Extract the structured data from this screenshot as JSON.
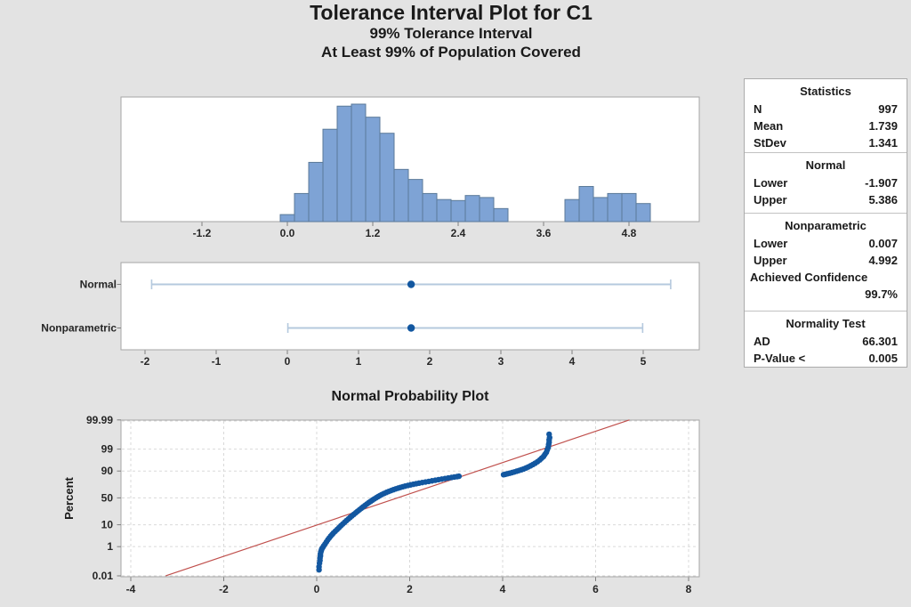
{
  "title": {
    "line1": "Tolerance Interval Plot for C1",
    "line2": "99% Tolerance Interval",
    "line3": "At Least 99% of Population Covered"
  },
  "stats_panel": {
    "sections": [
      {
        "title": "Statistics",
        "rows": [
          {
            "label": "N",
            "value": "997"
          },
          {
            "label": "Mean",
            "value": "1.739"
          },
          {
            "label": "StDev",
            "value": "1.341"
          }
        ]
      },
      {
        "title": "Normal",
        "rows": [
          {
            "label": "Lower",
            "value": "-1.907"
          },
          {
            "label": "Upper",
            "value": "5.386"
          }
        ]
      },
      {
        "title": "Nonparametric",
        "rows": [
          {
            "label": "Lower",
            "value": "0.007"
          },
          {
            "label": "Upper",
            "value": "4.992"
          }
        ],
        "extra_label": "Achieved Confidence",
        "extra_value": "99.7%"
      },
      {
        "title": "Normality Test",
        "rows": [
          {
            "label": "AD",
            "value": "66.301"
          },
          {
            "label": "P-Value <",
            "value": "0.005"
          }
        ]
      }
    ]
  },
  "colors": {
    "bar_fill": "#7EA3D5",
    "bar_stroke": "#5B7A99",
    "interval_line": "#B5C9DE",
    "symbol_blue": "#1257A0",
    "fit_line_red": "#C0504D",
    "panel_border": "#A6A6A6",
    "grid": "#D9D9D9",
    "tick": "#7F7F7F",
    "background": "#E3E3E3"
  },
  "chart_data": [
    {
      "type": "bar",
      "name": "histogram",
      "bin_width": 0.2,
      "bins": [
        [
          0.0,
          7
        ],
        [
          0.2,
          28
        ],
        [
          0.4,
          59
        ],
        [
          0.6,
          92
        ],
        [
          0.8,
          115
        ],
        [
          1.0,
          117
        ],
        [
          1.2,
          104
        ],
        [
          1.4,
          88
        ],
        [
          1.6,
          52
        ],
        [
          1.8,
          42
        ],
        [
          2.0,
          28
        ],
        [
          2.2,
          22
        ],
        [
          2.4,
          21
        ],
        [
          2.6,
          26
        ],
        [
          2.8,
          24
        ],
        [
          3.0,
          13
        ],
        [
          4.0,
          22
        ],
        [
          4.2,
          35
        ],
        [
          4.4,
          24
        ],
        [
          4.6,
          28
        ],
        [
          4.8,
          28
        ],
        [
          5.0,
          18
        ]
      ],
      "x_ticks": [
        -1.2,
        0.0,
        1.2,
        2.4,
        3.6,
        4.8
      ],
      "x_tick_labels": [
        "-1.2",
        "0.0",
        "1.2",
        "2.4",
        "3.6",
        "4.8"
      ],
      "xlim": [
        -2.34,
        5.79
      ],
      "max_count": 117,
      "grid": false
    },
    {
      "type": "interval",
      "name": "tolerance-intervals",
      "rows": [
        {
          "label": "Normal",
          "lower": -1.907,
          "upper": 5.386,
          "center": 1.739
        },
        {
          "label": "Nonparametric",
          "lower": 0.007,
          "upper": 4.992,
          "center": 1.739
        }
      ],
      "x_ticks": [
        -2,
        -1,
        0,
        1,
        2,
        3,
        4,
        5
      ],
      "x_tick_labels": [
        "-2",
        "-1",
        "0",
        "1",
        "2",
        "3",
        "4",
        "5"
      ],
      "xlim": [
        -2.34,
        5.79
      ],
      "grid": false
    },
    {
      "type": "scatter",
      "name": "normal-probability-plot",
      "title": "Normal Probability Plot",
      "ylabel": "Percent",
      "y_scale": "normal-probability",
      "y_ticks": [
        0.01,
        1,
        10,
        50,
        90,
        99,
        99.99
      ],
      "y_tick_labels": [
        "0.01",
        "1",
        "10",
        "50",
        "90",
        "99",
        "99.99"
      ],
      "x_ticks": [
        -4,
        -2,
        0,
        2,
        4,
        6,
        8
      ],
      "x_tick_labels": [
        "-4",
        "-2",
        "0",
        "2",
        "4",
        "6",
        "8"
      ],
      "xlim": [
        -4.2,
        8.2
      ],
      "grid": true,
      "fit_line": {
        "x1": -3.248,
        "p1": 0.01,
        "x2": 6.727,
        "p2": 99.99,
        "mean": 1.739,
        "stdev": 1.341
      },
      "points": [
        [
          0.05,
          0.03
        ],
        [
          0.05,
          0.05
        ],
        [
          0.06,
          0.09
        ],
        [
          0.07,
          0.14
        ],
        [
          0.07,
          0.2
        ],
        [
          0.08,
          0.28
        ],
        [
          0.08,
          0.38
        ],
        [
          0.09,
          0.5
        ],
        [
          0.1,
          0.62
        ],
        [
          0.11,
          0.75
        ],
        [
          0.13,
          0.9
        ],
        [
          0.15,
          1.1
        ],
        [
          0.18,
          1.4
        ],
        [
          0.21,
          1.8
        ],
        [
          0.24,
          2.3
        ],
        [
          0.27,
          2.8
        ],
        [
          0.3,
          3.4
        ],
        [
          0.33,
          4.0
        ],
        [
          0.36,
          4.7
        ],
        [
          0.4,
          5.6
        ],
        [
          0.44,
          6.6
        ],
        [
          0.48,
          7.8
        ],
        [
          0.52,
          9.2
        ],
        [
          0.56,
          10.6
        ],
        [
          0.6,
          12.2
        ],
        [
          0.64,
          13.9
        ],
        [
          0.68,
          15.7
        ],
        [
          0.72,
          17.6
        ],
        [
          0.76,
          19.6
        ],
        [
          0.8,
          21.7
        ],
        [
          0.84,
          23.9
        ],
        [
          0.88,
          26.2
        ],
        [
          0.92,
          28.6
        ],
        [
          0.96,
          31.0
        ],
        [
          1.0,
          33.5
        ],
        [
          1.04,
          36.0
        ],
        [
          1.08,
          38.5
        ],
        [
          1.12,
          41.0
        ],
        [
          1.16,
          43.4
        ],
        [
          1.2,
          45.8
        ],
        [
          1.24,
          48.1
        ],
        [
          1.28,
          50.3
        ],
        [
          1.32,
          52.4
        ],
        [
          1.36,
          54.4
        ],
        [
          1.4,
          56.3
        ],
        [
          1.45,
          58.4
        ],
        [
          1.5,
          60.3
        ],
        [
          1.55,
          62.1
        ],
        [
          1.6,
          63.7
        ],
        [
          1.65,
          65.2
        ],
        [
          1.7,
          66.6
        ],
        [
          1.75,
          67.9
        ],
        [
          1.8,
          69.1
        ],
        [
          1.85,
          70.2
        ],
        [
          1.9,
          71.2
        ],
        [
          1.96,
          72.3
        ],
        [
          2.02,
          73.3
        ],
        [
          2.08,
          74.2
        ],
        [
          2.14,
          75.1
        ],
        [
          2.2,
          75.9
        ],
        [
          2.27,
          76.8
        ],
        [
          2.34,
          77.6
        ],
        [
          2.41,
          78.4
        ],
        [
          2.48,
          79.2
        ],
        [
          2.55,
          80.0
        ],
        [
          2.62,
          80.8
        ],
        [
          2.69,
          81.5
        ],
        [
          2.76,
          82.2
        ],
        [
          2.83,
          82.9
        ],
        [
          2.9,
          83.5
        ],
        [
          2.96,
          84.0
        ],
        [
          3.02,
          84.5
        ],
        [
          3.06,
          84.9
        ],
        [
          4.02,
          86.6
        ],
        [
          4.06,
          87.0
        ],
        [
          4.1,
          87.5
        ],
        [
          4.15,
          88.0
        ],
        [
          4.2,
          88.6
        ],
        [
          4.25,
          89.2
        ],
        [
          4.3,
          89.8
        ],
        [
          4.35,
          90.4
        ],
        [
          4.4,
          91.0
        ],
        [
          4.45,
          91.6
        ],
        [
          4.5,
          92.3
        ],
        [
          4.55,
          93.0
        ],
        [
          4.6,
          93.7
        ],
        [
          4.65,
          94.4
        ],
        [
          4.7,
          95.1
        ],
        [
          4.75,
          95.8
        ],
        [
          4.8,
          96.5
        ],
        [
          4.84,
          97.1
        ],
        [
          4.88,
          97.6
        ],
        [
          4.91,
          98.1
        ],
        [
          4.94,
          98.5
        ],
        [
          4.96,
          98.9
        ],
        [
          4.98,
          99.2
        ],
        [
          4.99,
          99.45
        ],
        [
          5.0,
          99.6
        ],
        [
          5.0,
          99.72
        ],
        [
          5.01,
          99.8
        ],
        [
          5.0,
          99.88
        ]
      ]
    }
  ]
}
